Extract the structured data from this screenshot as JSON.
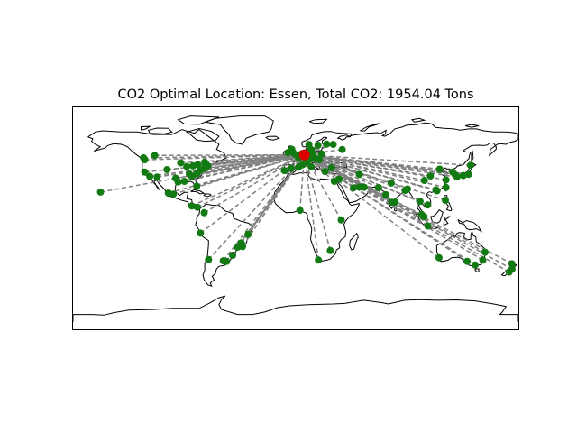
{
  "title": "CO2 Optimal Location: Essen, Total CO2: 1954.04 Tons",
  "map": {
    "projection": "equirectangular",
    "lon_range": [
      -180,
      180
    ],
    "lat_range": [
      -90,
      90
    ],
    "coastline_color": "#000000",
    "route_line_color": "#808080",
    "route_line_style": "dashed",
    "site_marker_color": "#127a12",
    "optimal_marker_color": "#dd0000"
  },
  "optimal_location": {
    "name": "Essen",
    "lon": 7.0,
    "lat": 51.5
  },
  "sites": [
    {
      "lon": -122,
      "lat": 37.5
    },
    {
      "lon": -118,
      "lat": 34
    },
    {
      "lon": -122,
      "lat": 47.5
    },
    {
      "lon": -123,
      "lat": 49
    },
    {
      "lon": -114,
      "lat": 51
    },
    {
      "lon": -104,
      "lat": 39.5
    },
    {
      "lon": -112,
      "lat": 33.5
    },
    {
      "lon": -97,
      "lat": 32.5
    },
    {
      "lon": -95,
      "lat": 29.5
    },
    {
      "lon": -90,
      "lat": 30
    },
    {
      "lon": -93,
      "lat": 45
    },
    {
      "lon": -88,
      "lat": 42
    },
    {
      "lon": -84,
      "lat": 34
    },
    {
      "lon": -80,
      "lat": 26
    },
    {
      "lon": -83,
      "lat": 42.5
    },
    {
      "lon": -79,
      "lat": 43.5
    },
    {
      "lon": -74,
      "lat": 40.5
    },
    {
      "lon": -71,
      "lat": 42.5
    },
    {
      "lon": -73.5,
      "lat": 45.5
    },
    {
      "lon": -77,
      "lat": 39
    },
    {
      "lon": -80,
      "lat": 36
    },
    {
      "lon": -86,
      "lat": 36
    },
    {
      "lon": -103,
      "lat": 20.5
    },
    {
      "lon": -99,
      "lat": 19.5
    },
    {
      "lon": -157.8,
      "lat": 21.3
    },
    {
      "lon": -84,
      "lat": 10
    },
    {
      "lon": -79.5,
      "lat": 9
    },
    {
      "lon": -74,
      "lat": 4.5
    },
    {
      "lon": -77,
      "lat": -12
    },
    {
      "lon": -70.5,
      "lat": -33.5
    },
    {
      "lon": -58.5,
      "lat": -34.5
    },
    {
      "lon": -56,
      "lat": -35
    },
    {
      "lon": -51,
      "lat": -30
    },
    {
      "lon": -47,
      "lat": -23.5
    },
    {
      "lon": -43,
      "lat": -23
    },
    {
      "lon": -44,
      "lat": -20
    },
    {
      "lon": -38.5,
      "lat": -13
    },
    {
      "lon": -0.1,
      "lat": 51.5
    },
    {
      "lon": -2.2,
      "lat": 53.5
    },
    {
      "lon": -6.3,
      "lat": 53.3
    },
    {
      "lon": -3.2,
      "lat": 56
    },
    {
      "lon": 2.35,
      "lat": 48.85
    },
    {
      "lon": 4.9,
      "lat": 52.4
    },
    {
      "lon": 4.4,
      "lat": 50.8
    },
    {
      "lon": 13.4,
      "lat": 52.5
    },
    {
      "lon": 10,
      "lat": 53.5
    },
    {
      "lon": 11.6,
      "lat": 48.1
    },
    {
      "lon": 8.7,
      "lat": 50.1
    },
    {
      "lon": 8.5,
      "lat": 47.4
    },
    {
      "lon": 9.2,
      "lat": 45.5
    },
    {
      "lon": 12.5,
      "lat": 41.9
    },
    {
      "lon": 16.4,
      "lat": 48.2
    },
    {
      "lon": 21,
      "lat": 52.2
    },
    {
      "lon": 14.4,
      "lat": 50.1
    },
    {
      "lon": 19,
      "lat": 47.5
    },
    {
      "lon": 12.6,
      "lat": 55.7
    },
    {
      "lon": 18,
      "lat": 59.3
    },
    {
      "lon": 10.7,
      "lat": 59.9
    },
    {
      "lon": 25,
      "lat": 60.2
    },
    {
      "lon": 37.6,
      "lat": 55.8
    },
    {
      "lon": 30.3,
      "lat": 59.9
    },
    {
      "lon": -3.7,
      "lat": 40.4
    },
    {
      "lon": 2.2,
      "lat": 41.4
    },
    {
      "lon": -9.1,
      "lat": 38.7
    },
    {
      "lon": 5.4,
      "lat": 43.3
    },
    {
      "lon": 23.7,
      "lat": 38
    },
    {
      "lon": 29,
      "lat": 41
    },
    {
      "lon": 35.2,
      "lat": 31.8
    },
    {
      "lon": 31.2,
      "lat": 30
    },
    {
      "lon": 3.4,
      "lat": 6.5
    },
    {
      "lon": 36.8,
      "lat": -1.3
    },
    {
      "lon": 28,
      "lat": -26.2
    },
    {
      "lon": 18.4,
      "lat": -33.9
    },
    {
      "lon": 46.7,
      "lat": 24.7
    },
    {
      "lon": 55.3,
      "lat": 25.2
    },
    {
      "lon": 51.5,
      "lat": 25.3
    },
    {
      "lon": 51.4,
      "lat": 35.7
    },
    {
      "lon": 67,
      "lat": 24.9
    },
    {
      "lon": 72.9,
      "lat": 19.1
    },
    {
      "lon": 77.2,
      "lat": 28.6
    },
    {
      "lon": 77.6,
      "lat": 13
    },
    {
      "lon": 80.3,
      "lat": 13.1
    },
    {
      "lon": 88.4,
      "lat": 22.6
    },
    {
      "lon": 90.4,
      "lat": 23.8
    },
    {
      "lon": 100.5,
      "lat": 13.7
    },
    {
      "lon": 106.7,
      "lat": 10.8
    },
    {
      "lon": 101.7,
      "lat": 3.1
    },
    {
      "lon": 103.8,
      "lat": 1.3
    },
    {
      "lon": 106.8,
      "lat": -6.2
    },
    {
      "lon": 121,
      "lat": 14.6
    },
    {
      "lon": 114.2,
      "lat": 22.3
    },
    {
      "lon": 113.3,
      "lat": 23.1
    },
    {
      "lon": 121.5,
      "lat": 31.2
    },
    {
      "lon": 116.4,
      "lat": 39.9
    },
    {
      "lon": 121.5,
      "lat": 25
    },
    {
      "lon": 126.9,
      "lat": 37.5
    },
    {
      "lon": 129,
      "lat": 35.2
    },
    {
      "lon": 139.7,
      "lat": 35.7
    },
    {
      "lon": 135.5,
      "lat": 34.7
    },
    {
      "lon": 130.4,
      "lat": 33.6
    },
    {
      "lon": 141.3,
      "lat": 43
    },
    {
      "lon": 104,
      "lat": 30.7
    },
    {
      "lon": 108.9,
      "lat": 34.3
    },
    {
      "lon": 115.9,
      "lat": -32
    },
    {
      "lon": 138.6,
      "lat": -34.9
    },
    {
      "lon": 145,
      "lat": -37.8
    },
    {
      "lon": 151.2,
      "lat": -33.9
    },
    {
      "lon": 153,
      "lat": -27.5
    },
    {
      "lon": 174.8,
      "lat": -36.9
    },
    {
      "lon": 172.6,
      "lat": -43.5
    },
    {
      "lon": 174.8,
      "lat": -41.3
    }
  ]
}
